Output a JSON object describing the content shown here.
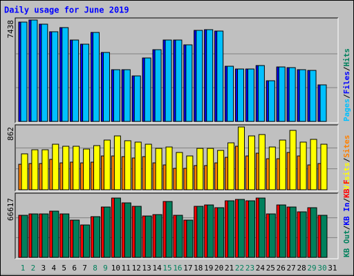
{
  "title": "Daily usage for June 2019",
  "chart_data": [
    {
      "type": "bar",
      "ylim": [
        0,
        7438
      ],
      "yticks": [
        7438
      ],
      "series": [
        {
          "name": "Hits",
          "color": "#00805c",
          "values": [
            7286,
            7438,
            7134,
            6578,
            6882,
            5971,
            5667,
            6527,
            5060,
            3795,
            3795,
            3339,
            4655,
            5262,
            5971,
            5971,
            5617,
            6679,
            6730,
            6629,
            4048,
            3846,
            3846,
            4099,
            2985,
            3997,
            3947,
            3795,
            3744,
            2682,
            null
          ]
        },
        {
          "name": "Files",
          "color": "#0000ff",
          "values": [
            7286,
            7438,
            7134,
            6578,
            6882,
            5971,
            5667,
            6527,
            5060,
            3795,
            3795,
            3339,
            4655,
            5262,
            5971,
            5971,
            5617,
            6679,
            6730,
            6629,
            4048,
            3846,
            3846,
            4099,
            2985,
            3997,
            3947,
            3795,
            3744,
            2682,
            null
          ]
        },
        {
          "name": "Pages",
          "color": "#00c0ff",
          "values": [
            7286,
            7438,
            7134,
            6578,
            6882,
            5971,
            5667,
            6527,
            5060,
            3795,
            3795,
            3339,
            4655,
            5262,
            5971,
            5971,
            5617,
            6679,
            6730,
            6629,
            4048,
            3846,
            3846,
            4099,
            2985,
            3997,
            3947,
            3795,
            3744,
            2682,
            null
          ]
        }
      ]
    },
    {
      "type": "bar",
      "ylim": [
        0,
        862
      ],
      "yticks": [
        862
      ],
      "series": [
        {
          "name": "Sites",
          "color": "#ff8000",
          "values": [
            350,
            360,
            360,
            417,
            369,
            379,
            369,
            379,
            464,
            464,
            455,
            436,
            455,
            369,
            341,
            294,
            294,
            332,
            332,
            369,
            445,
            597,
            464,
            502,
            426,
            426,
            512,
            464,
            341,
            360,
            null
          ]
        },
        {
          "name": "Visits",
          "color": "#ffff00",
          "values": [
            493,
            549,
            549,
            625,
            597,
            597,
            559,
            606,
            682,
            739,
            673,
            654,
            625,
            568,
            587,
            512,
            464,
            568,
            568,
            540,
            644,
            862,
            739,
            758,
            587,
            682,
            815,
            654,
            692,
            625,
            null
          ]
        }
      ]
    },
    {
      "type": "bar",
      "ylim": [
        0,
        66617
      ],
      "yticks": [
        66617
      ],
      "categories": [
        1,
        2,
        3,
        4,
        5,
        6,
        7,
        8,
        9,
        10,
        11,
        12,
        13,
        14,
        15,
        16,
        17,
        18,
        19,
        20,
        21,
        22,
        23,
        24,
        25,
        26,
        27,
        28,
        29,
        30,
        31
      ],
      "category_colors": [
        "#00805c",
        "#00805c",
        "#000000",
        "#000000",
        "#000000",
        "#000000",
        "#000000",
        "#00805c",
        "#00805c",
        "#000000",
        "#000000",
        "#000000",
        "#000000",
        "#000000",
        "#00805c",
        "#00805c",
        "#000000",
        "#000000",
        "#000000",
        "#000000",
        "#000000",
        "#00805c",
        "#00805c",
        "#000000",
        "#000000",
        "#000000",
        "#000000",
        "#000000",
        "#00805c",
        "#00805c",
        "#000000"
      ],
      "series": [
        {
          "name": "KB F",
          "color": "#ff0000",
          "values": [
            47251,
            48800,
            48800,
            51898,
            48800,
            41829,
            36406,
            45701,
            56546,
            66617,
            61193,
            57320,
            46476,
            48025,
            62743,
            47251,
            41829,
            57320,
            58870,
            55771,
            63517,
            65067,
            63517,
            66617,
            48800,
            58870,
            56546,
            51124,
            55771,
            47251,
            null
          ]
        },
        {
          "name": "KB In",
          "color": "#0000ff",
          "values": [
            null,
            null,
            null,
            null,
            null,
            null,
            null,
            null,
            null,
            null,
            null,
            null,
            null,
            null,
            null,
            null,
            null,
            null,
            null,
            null,
            null,
            null,
            null,
            null,
            null,
            null,
            null,
            null,
            null,
            null,
            null
          ]
        },
        {
          "name": "KB Out",
          "color": "#00805c",
          "values": [
            47251,
            48800,
            48800,
            51898,
            48800,
            41829,
            36406,
            45701,
            56546,
            66617,
            61193,
            57320,
            46476,
            48025,
            62743,
            47251,
            41829,
            57320,
            58870,
            55771,
            63517,
            65067,
            63517,
            66617,
            48800,
            58870,
            56546,
            51124,
            55771,
            47251,
            null
          ]
        }
      ]
    }
  ]
}
